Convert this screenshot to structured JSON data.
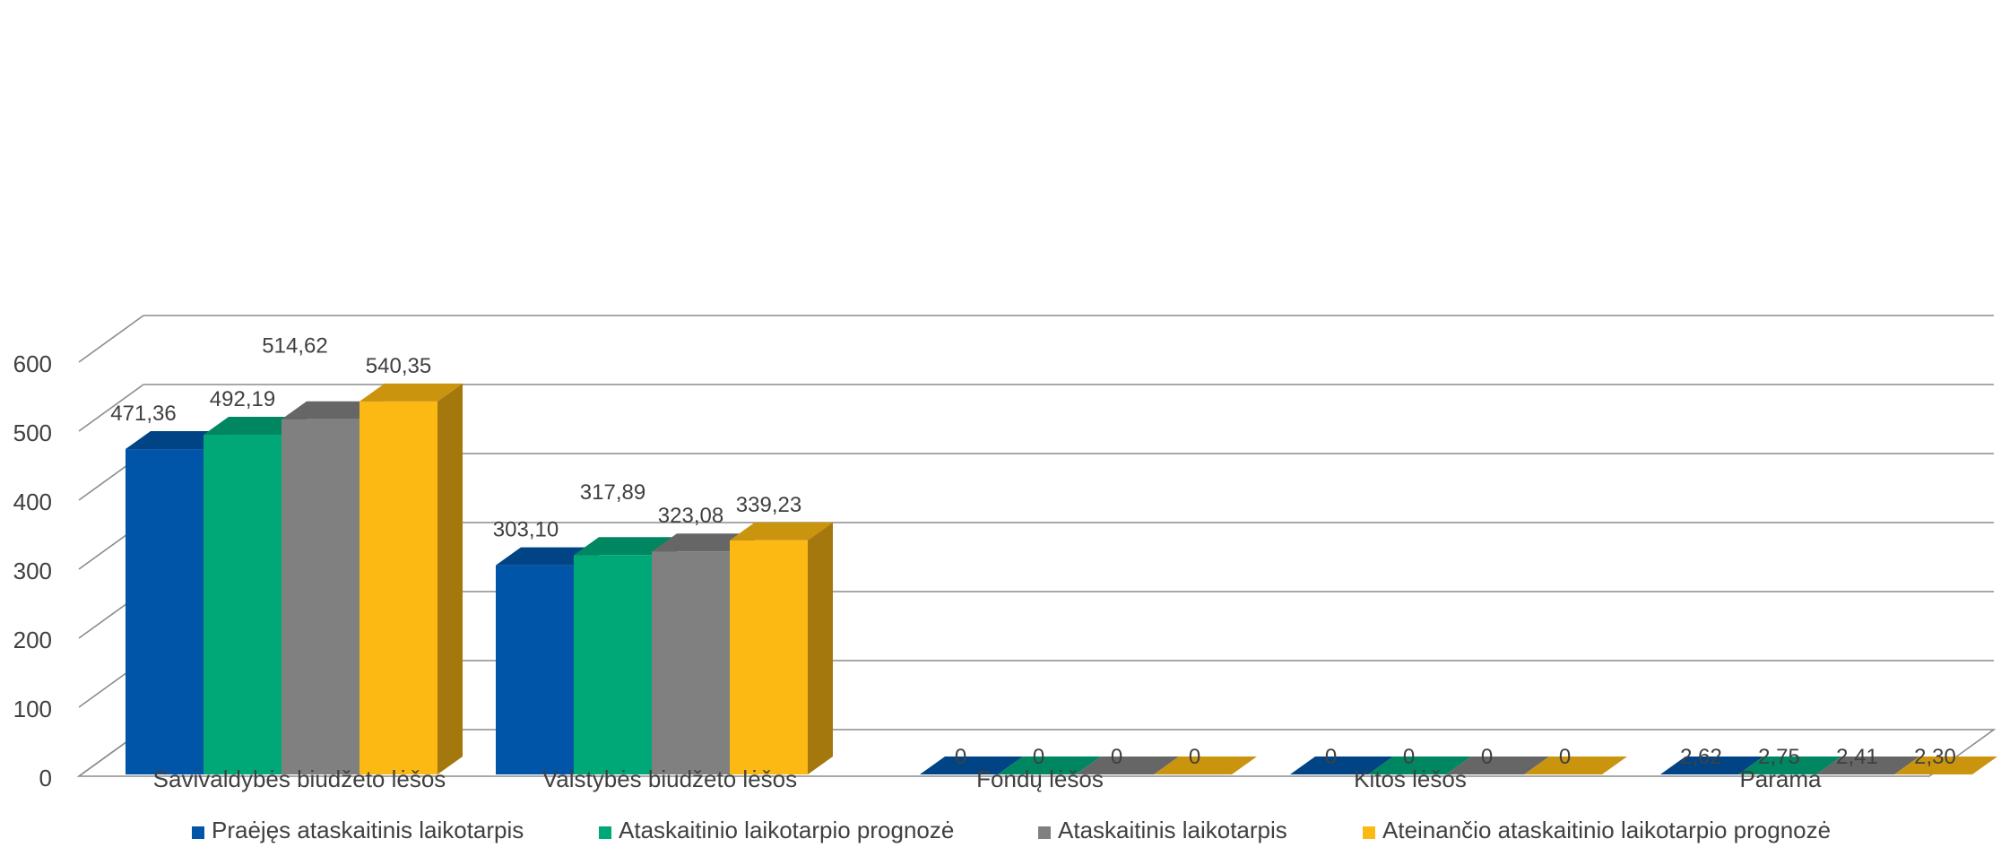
{
  "chart_data": {
    "type": "bar",
    "title": "",
    "xlabel": "",
    "ylabel": "",
    "ylim": [
      0,
      600
    ],
    "yticks": [
      "0",
      "100",
      "200",
      "300",
      "400",
      "500",
      "600"
    ],
    "grid": true,
    "legend_position": "bottom",
    "categories": [
      "Savivaldybės biudžeto lėšos",
      "Valstybės biudžeto lėšos",
      "Fondų lėšos",
      "Kitos lėšos",
      "Parama"
    ],
    "series": [
      {
        "name": "Praėjęs ataskaitinis laikotarpis",
        "color": "#0055A8",
        "values": [
          471.36,
          303.1,
          0,
          0,
          2.62
        ],
        "labels": [
          "471,36",
          "303,10",
          "0",
          "0",
          "2,62"
        ]
      },
      {
        "name": "Ataskaitinio laikotarpio prognozė",
        "color": "#00A878",
        "values": [
          492.19,
          317.89,
          0,
          0,
          2.75
        ],
        "labels": [
          "492,19",
          "317,89",
          "0",
          "0",
          "2,75"
        ]
      },
      {
        "name": "Ataskaitinis laikotarpis",
        "color": "#808080",
        "values": [
          514.62,
          323.08,
          0,
          0,
          2.41
        ],
        "labels": [
          "514,62",
          "323,08",
          "0",
          "0",
          "2,41"
        ]
      },
      {
        "name": "Ateinančio ataskaitinio laikotarpio prognozė",
        "color": "#FDB913",
        "values": [
          540.35,
          339.23,
          0,
          0,
          2.3
        ],
        "labels": [
          "540,35",
          "339,23",
          "0",
          "0",
          "2,30"
        ]
      }
    ]
  }
}
